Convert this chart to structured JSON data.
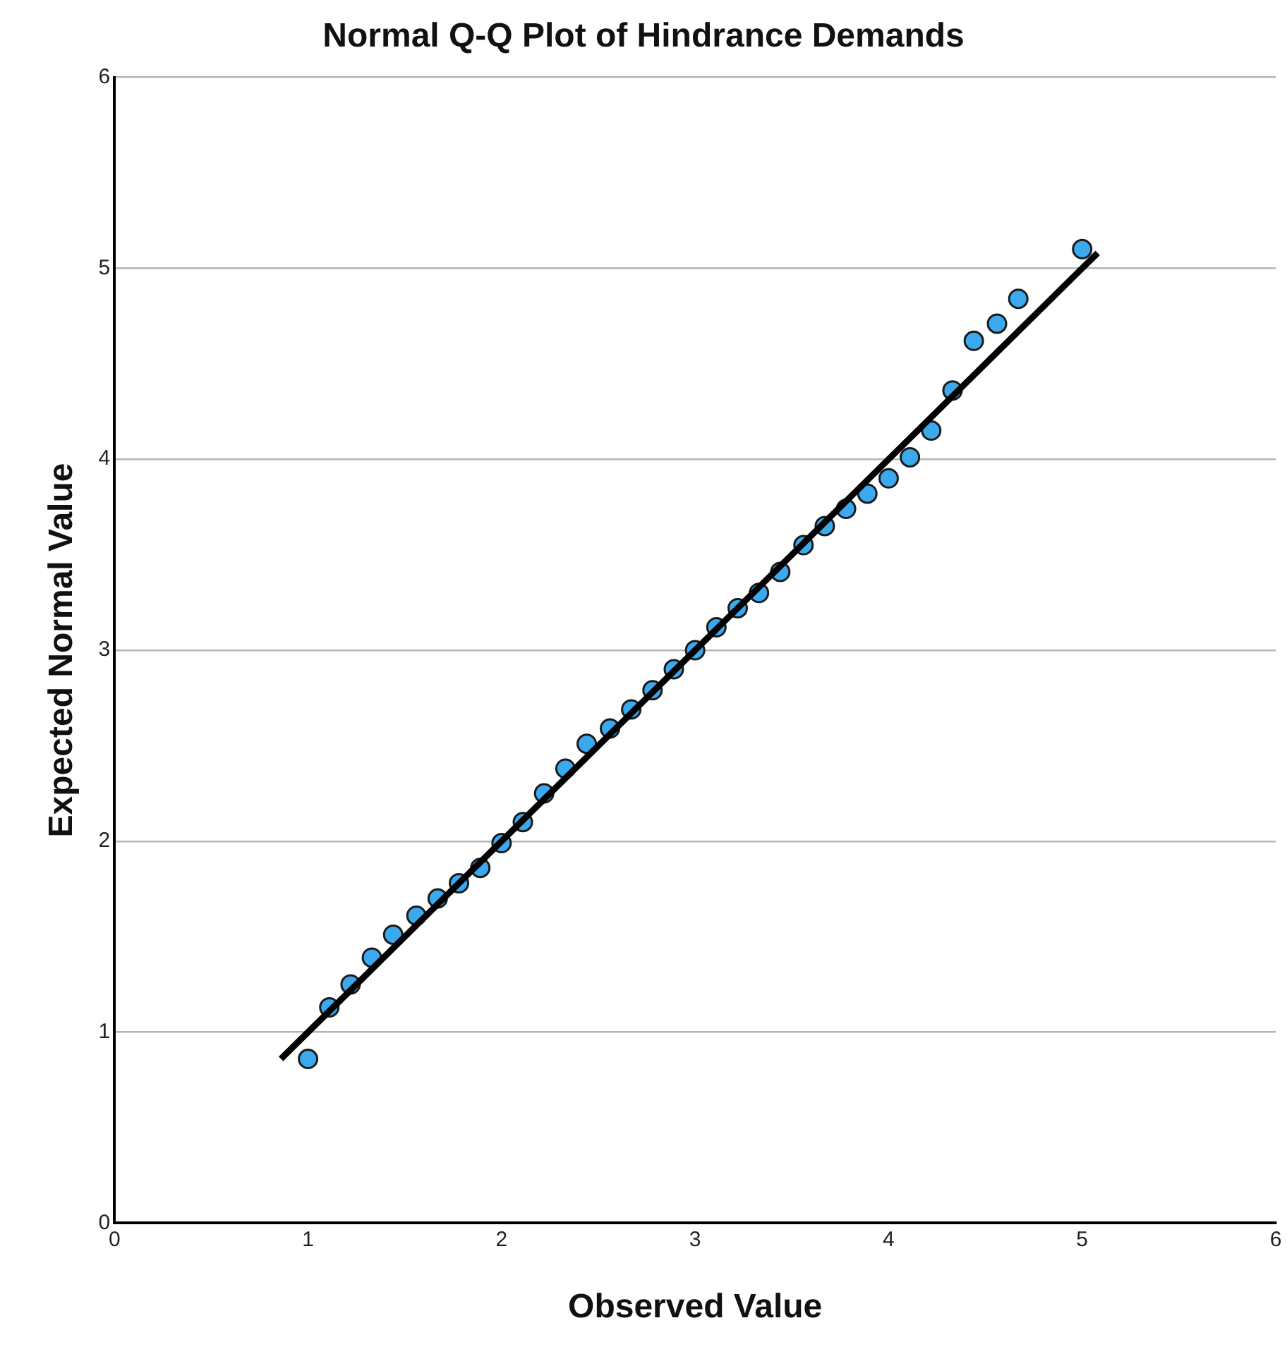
{
  "chart_data": {
    "type": "scatter",
    "title": "Normal Q-Q Plot of Hindrance Demands",
    "xlabel": "Observed Value",
    "ylabel": "Expected Normal Value",
    "xlim": [
      0,
      6
    ],
    "xticks": [
      0,
      1,
      2,
      3,
      4,
      5,
      6
    ],
    "ylim": [
      0,
      6
    ],
    "yticks": [
      0,
      1,
      2,
      3,
      4,
      5,
      6
    ],
    "grid": "y",
    "legend": false,
    "marker": "circle",
    "series": [
      {
        "type": "scatter",
        "color": "#3ba9ee",
        "x": [
          1.0,
          1.11,
          1.22,
          1.33,
          1.44,
          1.56,
          1.67,
          1.78,
          1.89,
          2.0,
          2.11,
          2.22,
          2.33,
          2.44,
          2.56,
          2.67,
          2.78,
          2.89,
          3.0,
          3.11,
          3.22,
          3.33,
          3.44,
          3.56,
          3.67,
          3.78,
          3.89,
          4.0,
          4.11,
          4.22,
          4.33,
          4.44,
          4.56,
          4.67,
          5.0
        ],
        "values": [
          0.86,
          1.13,
          1.25,
          1.39,
          1.51,
          1.61,
          1.7,
          1.78,
          1.86,
          1.99,
          2.1,
          2.25,
          2.38,
          2.51,
          2.59,
          2.69,
          2.79,
          2.9,
          3.0,
          3.12,
          3.22,
          3.3,
          3.41,
          3.55,
          3.65,
          3.74,
          3.82,
          3.9,
          4.01,
          4.15,
          4.36,
          4.62,
          4.71,
          4.84,
          5.1
        ]
      },
      {
        "type": "line",
        "color": "#000000",
        "x": [
          0.86,
          5.08
        ],
        "values": [
          0.86,
          5.08
        ],
        "marker": "none",
        "line_style": "solid"
      }
    ]
  }
}
